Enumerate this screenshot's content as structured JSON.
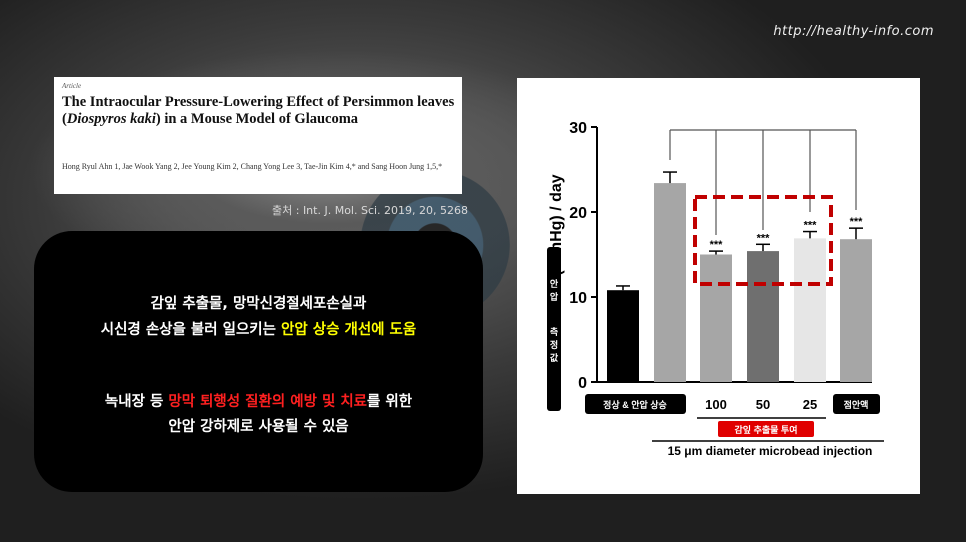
{
  "header": {
    "url": "http://healthy-info.com"
  },
  "article": {
    "kind": "Article",
    "title_part1": "The Intraocular Pressure-Lowering Effect of Persimmon leaves (",
    "title_italic": "Diospyros kaki",
    "title_part2": ") in a Mouse Model of Glaucoma",
    "authors": "Hong Ryul Ahn 1, Jae Wook Yang 2, Jee Young Kim 2, Chang Yong Lee 3, Tae-Jin Kim 4,* and Sang Hoon Jung 1,5,*"
  },
  "source": "출처 : Int. J. Mol. Sci. 2019, 20, 5268",
  "summary": {
    "line1": "감잎 추출물, 망막신경절세포손실과",
    "line2_a": "시신경 손상을 불러 일으키는 ",
    "line2_b": "안압 상승 개선에 도움",
    "line3_a": "녹내장 등 ",
    "line3_b": "망막 퇴행성 질환의 예방 및 치료",
    "line3_c": "를 위한",
    "line4": "안압 강하제로 사용될 수 있음"
  },
  "chart_data": {
    "type": "bar",
    "ylabel_unit": "(mmHg) / day",
    "ylabel_side": [
      "안압",
      "측정값"
    ],
    "ylim": [
      0,
      30
    ],
    "yticks": [
      0,
      10,
      20,
      30
    ],
    "categories": [
      "정상 & 안압 상승",
      "안압 상승",
      "100",
      "50",
      "25",
      "점안액"
    ],
    "values": [
      10.8,
      23.4,
      15.0,
      15.4,
      16.9,
      16.8
    ],
    "errors": [
      0.5,
      1.3,
      0.4,
      0.8,
      0.8,
      1.3
    ],
    "significance": [
      "",
      "",
      "***",
      "***",
      "***",
      "***"
    ],
    "colors": [
      "#000000",
      "#a6a6a6",
      "#a6a6a6",
      "#6f6f6f",
      "#e6e6e6",
      "#a6a6a6"
    ],
    "x_labels": {
      "pill_left": "정상 & 안압 상승",
      "doses": [
        "100",
        "50",
        "25"
      ],
      "pill_right": "점안액",
      "treatment": "감잎 추출물 투여",
      "injection": "15 μm diameter microbead injection"
    }
  }
}
